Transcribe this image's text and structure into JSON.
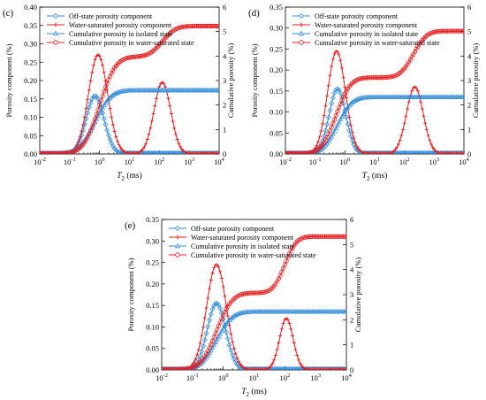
{
  "colors": {
    "blue": "#2e8ad8",
    "red": "#e8191b",
    "axis": "#000000"
  },
  "chart_data": [
    {
      "panel_label": "(c)",
      "type": "line",
      "xscale": "log",
      "xlim": [
        0.01,
        10000
      ],
      "xticks": [
        "10-2",
        "10-1",
        "100",
        "101",
        "102",
        "103",
        "104"
      ],
      "xlabel": "T2 (ms)",
      "ylabel_left": "Porosity component (%)",
      "ylabel_right": "Cumulative porosity (%)",
      "ylim_left": [
        0,
        0.4
      ],
      "yticks_left": [
        "0.00",
        "0.05",
        "0.10",
        "0.15",
        "0.20",
        "0.25",
        "0.30",
        "0.35",
        "0.40"
      ],
      "ylim_right": [
        0,
        6
      ],
      "yticks_right": [
        "0",
        "1",
        "2",
        "3",
        "4",
        "5",
        "6"
      ],
      "legend": [
        "Off-state porosity component",
        "Water-saturated porosity component",
        "Cumulative porosity in isolated state",
        "Cumulative porosity in water-saturated state"
      ],
      "series": [
        {
          "name": "Off-state porosity component",
          "axis": "left",
          "marker": "diamond",
          "color": "blue",
          "peaks": [
            {
              "center_log": -0.15,
              "width": 0.3,
              "height": 0.158
            }
          ],
          "tail": 0.0
        },
        {
          "name": "Water-saturated porosity component",
          "axis": "left",
          "marker": "cross",
          "color": "red",
          "peaks": [
            {
              "center_log": -0.05,
              "width": 0.32,
              "height": 0.27
            },
            {
              "center_log": 2.1,
              "width": 0.28,
              "height": 0.195
            }
          ],
          "tail": 0.0
        },
        {
          "name": "Cumulative porosity in isolated state",
          "axis": "right",
          "marker": "triangle",
          "color": "blue",
          "steps": [
            {
              "from": 0.0,
              "to": 2.58,
              "center_log": -0.15,
              "width": 0.42
            }
          ]
        },
        {
          "name": "Cumulative porosity in water-saturated state",
          "axis": "right",
          "marker": "circle",
          "color": "red",
          "steps": [
            {
              "from": 0.0,
              "to": 3.95,
              "center_log": 0.0,
              "width": 0.42
            },
            {
              "from": 3.95,
              "to": 5.2,
              "center_log": 2.1,
              "width": 0.35
            }
          ]
        }
      ]
    },
    {
      "panel_label": "(d)",
      "type": "line",
      "xscale": "log",
      "xlim": [
        0.01,
        10000
      ],
      "xticks": [
        "10-2",
        "10-1",
        "100",
        "101",
        "102",
        "103",
        "104"
      ],
      "xlabel": "T2 (ms)",
      "ylabel_left": "Porosity component (%)",
      "ylabel_right": "Cumulative porosity (%)",
      "ylim_left": [
        0,
        0.35
      ],
      "yticks_left": [
        "0.00",
        "0.05",
        "0.10",
        "0.15",
        "0.20",
        "0.25",
        "0.30",
        "0.35"
      ],
      "ylim_right": [
        0,
        6
      ],
      "yticks_right": [
        "0",
        "1",
        "2",
        "3",
        "4",
        "5",
        "6"
      ],
      "legend": [
        "Off-state porosity component",
        "Water-saturated porosity component",
        "Cumulative porosity in isolated state",
        "Cumulative porosity in water-saturated state"
      ],
      "series": [
        {
          "name": "Off-state porosity component",
          "axis": "left",
          "marker": "diamond",
          "color": "blue",
          "peaks": [
            {
              "center_log": -0.25,
              "width": 0.28,
              "height": 0.155
            }
          ],
          "tail": 0.0
        },
        {
          "name": "Water-saturated porosity component",
          "axis": "left",
          "marker": "cross",
          "color": "red",
          "peaks": [
            {
              "center_log": -0.28,
              "width": 0.3,
              "height": 0.245
            },
            {
              "center_log": 2.35,
              "width": 0.28,
              "height": 0.16
            }
          ],
          "tail": 0.0
        },
        {
          "name": "Cumulative porosity in isolated state",
          "axis": "right",
          "marker": "triangle",
          "color": "blue",
          "steps": [
            {
              "from": 0.0,
              "to": 2.3,
              "center_log": -0.25,
              "width": 0.38
            }
          ]
        },
        {
          "name": "Cumulative porosity in water-saturated state",
          "axis": "right",
          "marker": "circle",
          "color": "red",
          "steps": [
            {
              "from": 0.0,
              "to": 3.1,
              "center_log": -0.3,
              "width": 0.38
            },
            {
              "from": 3.1,
              "to": 5.0,
              "center_log": 2.3,
              "width": 0.35
            }
          ]
        }
      ]
    },
    {
      "panel_label": "(e)",
      "type": "line",
      "xscale": "log",
      "xlim": [
        0.01,
        10000
      ],
      "xticks": [
        "10-2",
        "10-1",
        "100",
        "101",
        "102",
        "103",
        "104"
      ],
      "xlabel": "T2 (ms)",
      "ylabel_left": "Porosity component (%)",
      "ylabel_right": "Cumulative porosity (%)",
      "ylim_left": [
        0,
        0.35
      ],
      "yticks_left": [
        "0.00",
        "0.05",
        "0.10",
        "0.15",
        "0.20",
        "0.25",
        "0.30",
        "0.35"
      ],
      "ylim_right": [
        0,
        6
      ],
      "yticks_right": [
        "0",
        "1",
        "2",
        "3",
        "4",
        "5",
        "6"
      ],
      "legend": [
        "Off-state porosity component",
        "Water-saturated porosity component",
        "Cumulative porosity in isolated state",
        "Cumulative porosity in water-saturated state"
      ],
      "series": [
        {
          "name": "Off-state porosity component",
          "axis": "left",
          "marker": "diamond",
          "color": "blue",
          "peaks": [
            {
              "center_log": -0.22,
              "width": 0.3,
              "height": 0.155
            }
          ],
          "tail": 0.0
        },
        {
          "name": "Water-saturated porosity component",
          "axis": "left",
          "marker": "cross",
          "color": "red",
          "peaks": [
            {
              "center_log": -0.22,
              "width": 0.32,
              "height": 0.245
            },
            {
              "center_log": 2.05,
              "width": 0.22,
              "height": 0.12
            }
          ],
          "tail": 0.0
        },
        {
          "name": "Cumulative porosity in isolated state",
          "axis": "right",
          "marker": "triangle",
          "color": "blue",
          "steps": [
            {
              "from": 0.0,
              "to": 2.3,
              "center_log": -0.22,
              "width": 0.4
            }
          ]
        },
        {
          "name": "Cumulative porosity in water-saturated state",
          "axis": "right",
          "marker": "circle",
          "color": "red",
          "steps": [
            {
              "from": 0.0,
              "to": 3.05,
              "center_log": -0.22,
              "width": 0.4
            },
            {
              "from": 3.05,
              "to": 5.3,
              "center_log": 2.0,
              "width": 0.3
            }
          ]
        }
      ]
    }
  ]
}
